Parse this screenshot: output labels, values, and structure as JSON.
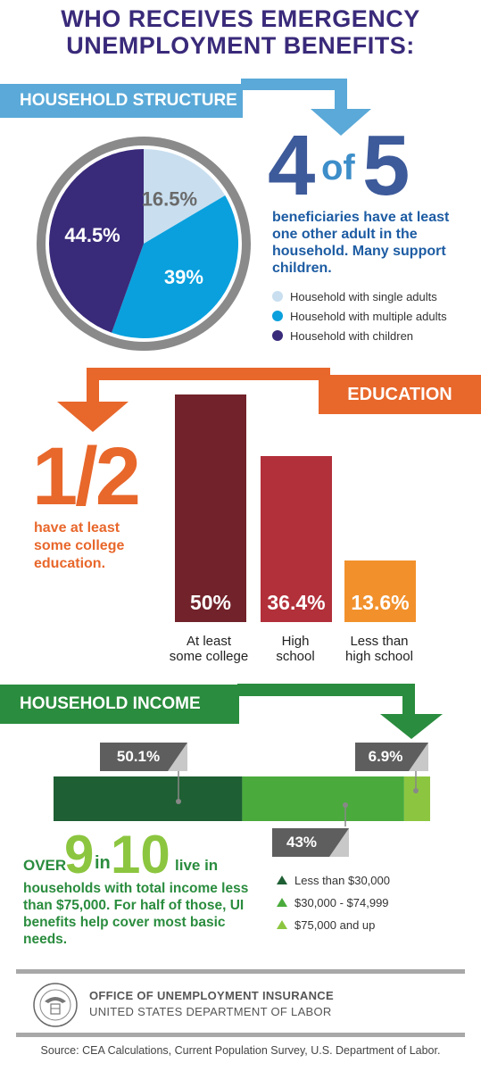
{
  "title_line1": "WHO RECEIVES EMERGENCY",
  "title_line2": "UNEMPLOYMENT BENEFITS:",
  "colors": {
    "purple": "#3a2a7a",
    "blue_band": "#5aa9d8",
    "orange": "#e8672b",
    "green_dark": "#1e5f33",
    "green_mid": "#4aab3c",
    "green_light": "#8cc640"
  },
  "household_structure": {
    "band_label": "HOUSEHOLD STRUCTURE",
    "big_stat": {
      "num1": "4",
      "of": "of",
      "num2": "5"
    },
    "description": "beneficiaries have at least one other adult in the household. Many support children.",
    "legend": [
      {
        "label": "Household with single adults",
        "color": "#c9dff0"
      },
      {
        "label": "Household with multiple adults",
        "color": "#0aa0dd"
      },
      {
        "label": "Household with children",
        "color": "#3a2a7a"
      }
    ]
  },
  "education": {
    "band_label": "EDUCATION",
    "big_stat": "1/2",
    "description_line1": "have at least",
    "description_line2": "some college",
    "description_line3": "education.",
    "categories": [
      {
        "line1": "At least",
        "line2": "some college"
      },
      {
        "line1": "High",
        "line2": "school"
      },
      {
        "line1": "Less than",
        "line2": "high school"
      }
    ]
  },
  "household_income": {
    "band_label": "HOUSEHOLD INCOME",
    "stat_over": "OVER",
    "stat_num1": "9",
    "stat_in": "in",
    "stat_num2": "10",
    "stat_tail": "live in",
    "description": "households with total income less than $75,000. For half of those, UI benefits help cover most basic needs.",
    "legend": [
      {
        "label": "Less than $30,000",
        "color": "#1e5f33"
      },
      {
        "label": "$30,000 - $74,999",
        "color": "#4aab3c"
      },
      {
        "label": "$75,000 and up",
        "color": "#8cc640"
      }
    ]
  },
  "footer": {
    "org_line1": "OFFICE OF UNEMPLOYMENT INSURANCE",
    "org_line2": "UNITED STATES DEPARTMENT OF LABOR",
    "source": "Source: CEA Calculations, Current Population Survey, U.S. Department of Labor."
  },
  "chart_data": [
    {
      "type": "pie",
      "categories": [
        "Household with single adults",
        "Household with multiple adults",
        "Household with children"
      ],
      "values": [
        16.5,
        39,
        44.5
      ],
      "value_labels": [
        "16.5%",
        "39%",
        "44.5%"
      ],
      "colors": [
        "#c9dff0",
        "#0aa0dd",
        "#3a2a7a"
      ]
    },
    {
      "type": "bar",
      "categories": [
        "At least some college",
        "High school",
        "Less than high school"
      ],
      "values": [
        50,
        36.4,
        13.6
      ],
      "value_labels": [
        "50%",
        "36.4%",
        "13.6%"
      ],
      "colors": [
        "#72222a",
        "#b2303a",
        "#f2912c"
      ],
      "ylim": [
        0,
        50
      ]
    },
    {
      "type": "bar",
      "orientation": "horizontal-stacked",
      "categories": [
        "Less than $30,000",
        "$30,000 - $74,999",
        "$75,000 and up"
      ],
      "values": [
        50.1,
        43,
        6.9
      ],
      "value_labels": [
        "50.1%",
        "43%",
        "6.9%"
      ],
      "colors": [
        "#1e5f33",
        "#4aab3c",
        "#8cc640"
      ]
    }
  ]
}
